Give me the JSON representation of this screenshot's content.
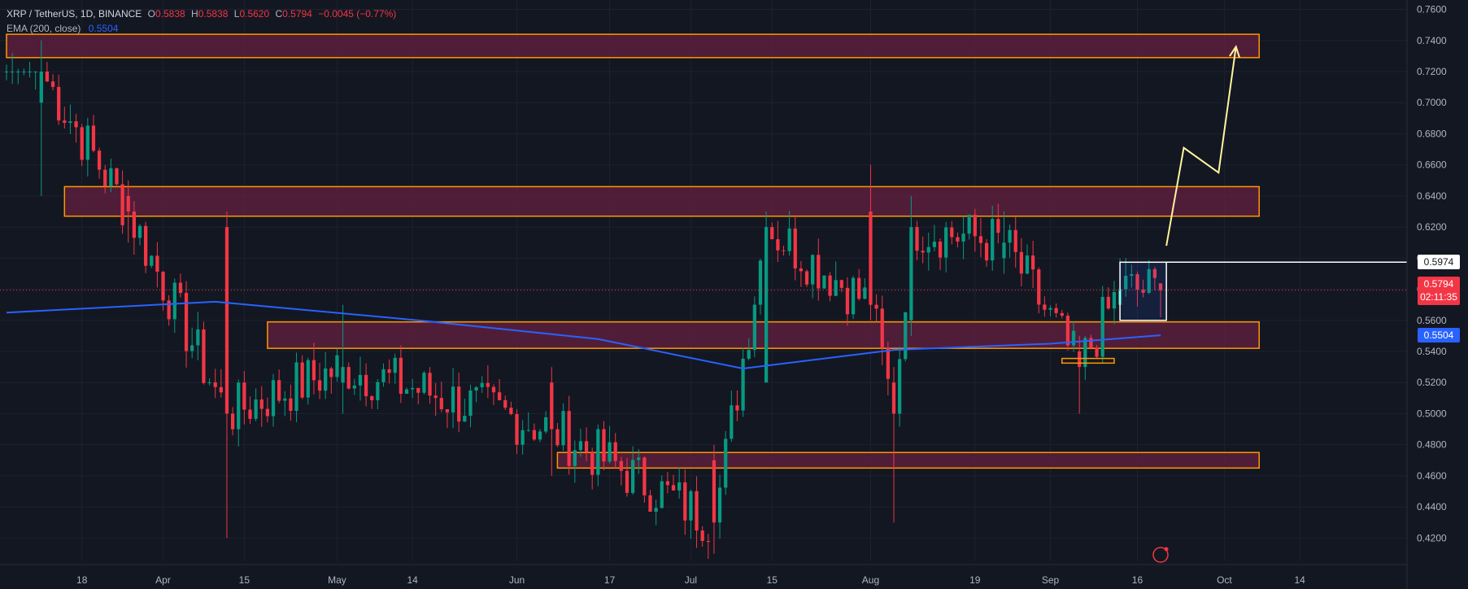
{
  "legend": {
    "symbol": "XRP / TetherUS, 1D, BINANCE",
    "o_label": "O",
    "o_value": "0.5838",
    "h_label": "H",
    "h_value": "0.5838",
    "l_label": "L",
    "l_value": "0.5620",
    "c_label": "C",
    "c_value": "0.5794",
    "change": "−0.0045 (−0.77%)",
    "ema_label": "EMA (200, close)",
    "ema_value": "0.5504"
  },
  "price_tags": {
    "level_box_top": "0.5974",
    "last_price": "0.5794",
    "countdown": "02:11:35",
    "ema": "0.5504"
  },
  "colors": {
    "background": "#131722",
    "up": "#089981",
    "down": "#f23645",
    "zone_fill": "#5c1f3d",
    "zone_border": "#ff9800",
    "ema": "#2962ff",
    "projection": "#fff59d"
  },
  "chart_data": {
    "type": "candlestick",
    "ylim": [
      0.405,
      0.765
    ],
    "y_ticks": [
      "0.7600",
      "0.7400",
      "0.7200",
      "0.7000",
      "0.6800",
      "0.6600",
      "0.6400",
      "0.6200",
      "0.6000",
      "0.5800",
      "0.5600",
      "0.5400",
      "0.5200",
      "0.5000",
      "0.4800",
      "0.4600",
      "0.4400",
      "0.4200"
    ],
    "x_ticks": [
      "18",
      "Apr",
      "15",
      "May",
      "14",
      "Jun",
      "17",
      "Jul",
      "15",
      "Aug",
      "19",
      "Sep",
      "16",
      "Oct",
      "14"
    ],
    "x_tick_dates": [
      "2024-03-18",
      "2024-04-01",
      "2024-04-15",
      "2024-05-01",
      "2024-05-14",
      "2024-06-01",
      "2024-06-17",
      "2024-07-01",
      "2024-07-15",
      "2024-08-01",
      "2024-08-19",
      "2024-09-01",
      "2024-09-16",
      "2024-10-01",
      "2024-10-14"
    ],
    "date_range": [
      "2024-03-05",
      "2024-09-20"
    ],
    "ohlc_key_points": [
      [
        "2024-03-11",
        0.7,
        0.74,
        0.64,
        0.72
      ],
      [
        "2024-03-26",
        0.64,
        0.65,
        0.61,
        0.63
      ],
      [
        "2024-04-12",
        0.62,
        0.63,
        0.42,
        0.5
      ],
      [
        "2024-05-02",
        0.52,
        0.57,
        0.5,
        0.53
      ],
      [
        "2024-06-07",
        0.52,
        0.53,
        0.46,
        0.49
      ],
      [
        "2024-07-05",
        0.47,
        0.48,
        0.41,
        0.43
      ],
      [
        "2024-07-14",
        0.52,
        0.63,
        0.52,
        0.62
      ],
      [
        "2024-08-01",
        0.63,
        0.66,
        0.56,
        0.57
      ],
      [
        "2024-08-05",
        0.52,
        0.53,
        0.43,
        0.5
      ],
      [
        "2024-08-08",
        0.56,
        0.64,
        0.55,
        0.62
      ],
      [
        "2024-08-24",
        0.6,
        0.63,
        0.59,
        0.61
      ],
      [
        "2024-09-06",
        0.54,
        0.55,
        0.5,
        0.53
      ],
      [
        "2024-09-13",
        0.57,
        0.6,
        0.56,
        0.58
      ],
      [
        "2024-09-20",
        0.5838,
        0.5838,
        0.562,
        0.5794
      ]
    ],
    "ema_200": [
      [
        "2024-03-05",
        0.565
      ],
      [
        "2024-04-10",
        0.572
      ],
      [
        "2024-05-15",
        0.56
      ],
      [
        "2024-06-15",
        0.548
      ],
      [
        "2024-07-10",
        0.529
      ],
      [
        "2024-08-05",
        0.541
      ],
      [
        "2024-09-01",
        0.545
      ],
      [
        "2024-09-20",
        0.5504
      ]
    ],
    "zones": [
      {
        "from": "2024-03-05",
        "to": "2024-10-07",
        "low": 0.729,
        "high": 0.744
      },
      {
        "from": "2024-03-15",
        "to": "2024-10-07",
        "low": 0.627,
        "high": 0.646
      },
      {
        "from": "2024-04-19",
        "to": "2024-10-07",
        "low": 0.542,
        "high": 0.559
      },
      {
        "from": "2024-06-08",
        "to": "2024-10-07",
        "low": 0.465,
        "high": 0.475
      }
    ],
    "small_zone": {
      "from": "2024-09-03",
      "to": "2024-09-12",
      "low": 0.5325,
      "high": 0.5355
    },
    "selection_box": {
      "from": "2024-09-13",
      "to": "2024-09-21",
      "low": 0.56,
      "high": 0.5974
    },
    "projection_path": [
      [
        "2024-09-21",
        0.608
      ],
      [
        "2024-09-24",
        0.671
      ],
      [
        "2024-09-30",
        0.655
      ],
      [
        "2024-10-03",
        0.736
      ]
    ],
    "last_price": 0.5794
  }
}
